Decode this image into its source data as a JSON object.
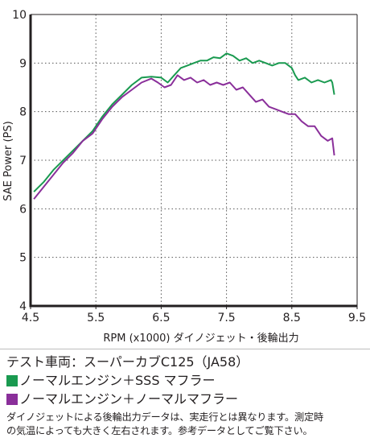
{
  "chart_data": {
    "type": "line",
    "title": "",
    "xlabel": "RPM (x1000) ダイノジェット・後輪出力",
    "ylabel": "SAE Power (PS)",
    "xlim": [
      4.5,
      9.5
    ],
    "ylim": [
      4,
      10
    ],
    "x_ticks": [
      "4.5",
      "5.5",
      "6.5",
      "7.5",
      "8.5",
      "9.5"
    ],
    "y_ticks": [
      "4",
      "5",
      "6",
      "7",
      "8",
      "9",
      "10"
    ],
    "grid": "dotted",
    "series": [
      {
        "name": "ノーマルエンジン＋SSS マフラー",
        "color": "#1a9a50",
        "x": [
          4.55,
          4.7,
          4.85,
          5.0,
          5.15,
          5.3,
          5.45,
          5.6,
          5.75,
          5.9,
          6.05,
          6.2,
          6.35,
          6.5,
          6.6,
          6.7,
          6.8,
          6.9,
          7.0,
          7.1,
          7.2,
          7.3,
          7.4,
          7.5,
          7.6,
          7.7,
          7.8,
          7.9,
          8.0,
          8.1,
          8.2,
          8.3,
          8.4,
          8.5,
          8.55,
          8.6,
          8.7,
          8.8,
          8.9,
          9.0,
          9.1,
          9.12,
          9.15
        ],
        "y": [
          6.35,
          6.55,
          6.8,
          7.0,
          7.2,
          7.4,
          7.6,
          7.9,
          8.15,
          8.35,
          8.55,
          8.7,
          8.72,
          8.7,
          8.6,
          8.75,
          8.9,
          8.95,
          9.0,
          9.05,
          9.05,
          9.12,
          9.1,
          9.2,
          9.15,
          9.05,
          9.1,
          9.0,
          9.05,
          9.0,
          8.95,
          9.0,
          9.0,
          8.9,
          8.75,
          8.65,
          8.7,
          8.6,
          8.65,
          8.6,
          8.65,
          8.6,
          8.35
        ]
      },
      {
        "name": "ノーマルエンジン＋ノーマルマフラー",
        "color": "#8a2f9a",
        "x": [
          4.55,
          4.7,
          4.85,
          5.0,
          5.15,
          5.3,
          5.45,
          5.6,
          5.75,
          5.9,
          6.05,
          6.2,
          6.35,
          6.45,
          6.55,
          6.65,
          6.75,
          6.85,
          6.95,
          7.05,
          7.15,
          7.25,
          7.35,
          7.45,
          7.55,
          7.65,
          7.75,
          7.85,
          7.95,
          8.05,
          8.15,
          8.25,
          8.35,
          8.45,
          8.55,
          8.65,
          8.75,
          8.85,
          8.95,
          9.05,
          9.12,
          9.15
        ],
        "y": [
          6.2,
          6.45,
          6.7,
          6.95,
          7.15,
          7.4,
          7.55,
          7.85,
          8.1,
          8.3,
          8.45,
          8.6,
          8.68,
          8.6,
          8.5,
          8.55,
          8.75,
          8.65,
          8.7,
          8.6,
          8.65,
          8.55,
          8.6,
          8.55,
          8.6,
          8.45,
          8.5,
          8.35,
          8.2,
          8.25,
          8.1,
          8.05,
          8.0,
          7.95,
          7.95,
          7.8,
          7.7,
          7.7,
          7.5,
          7.4,
          7.45,
          7.1
        ]
      }
    ]
  },
  "caption": {
    "title": "テスト車両：スーパーカブC125（JA58）",
    "note_line1": "ダイノジェットによる後輪出力データは、実走行とは異なります。測定時",
    "note_line2": "の気温によっても大きく左右されます。参考データとしてご覧下さい。"
  }
}
